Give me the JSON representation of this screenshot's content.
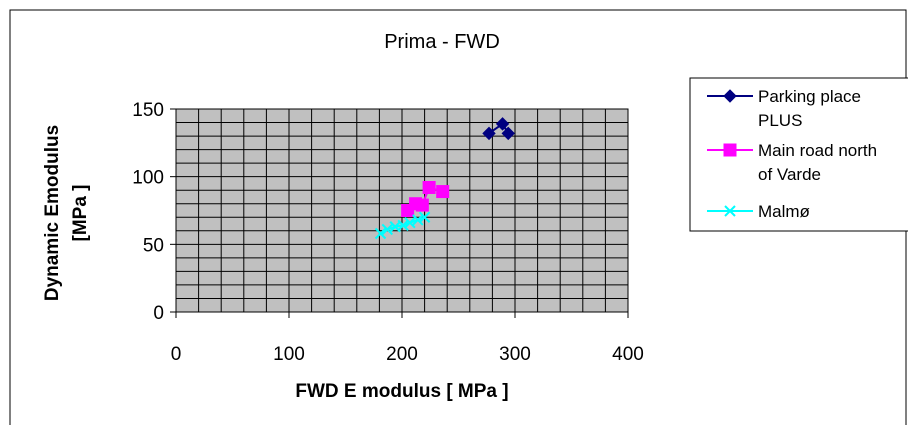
{
  "chart_data": {
    "type": "scatter",
    "title": "Prima - FWD",
    "xlabel": "FWD E modulus [ MPa ]",
    "ylabel_lines": [
      "Dynamic Emodulus",
      "[MPa ]"
    ],
    "xlim": [
      0,
      400
    ],
    "ylim": [
      0,
      150
    ],
    "x_ticks": [
      0,
      100,
      200,
      300,
      400
    ],
    "y_ticks": [
      0,
      50,
      100,
      150
    ],
    "x_minor_step": 20,
    "y_minor_step": 10,
    "grid": true,
    "legend_position": "right",
    "series": [
      {
        "name_lines": [
          "Parking place",
          "PLUS"
        ],
        "color": "#000080",
        "marker": "diamond",
        "x": [
          277,
          289,
          294
        ],
        "y": [
          132,
          139,
          132
        ]
      },
      {
        "name_lines": [
          "Main road north",
          "of Varde"
        ],
        "color": "#FF00FF",
        "marker": "square",
        "x": [
          205,
          212,
          218,
          224,
          236
        ],
        "y": [
          75,
          80,
          79,
          92,
          89
        ]
      },
      {
        "name_lines": [
          "Malmø"
        ],
        "color": "#00FFFF",
        "marker": "asterisk",
        "x": [
          181,
          187,
          194,
          201,
          207,
          214,
          220
        ],
        "y": [
          58,
          61,
          63,
          64,
          66,
          68,
          70
        ]
      }
    ]
  }
}
